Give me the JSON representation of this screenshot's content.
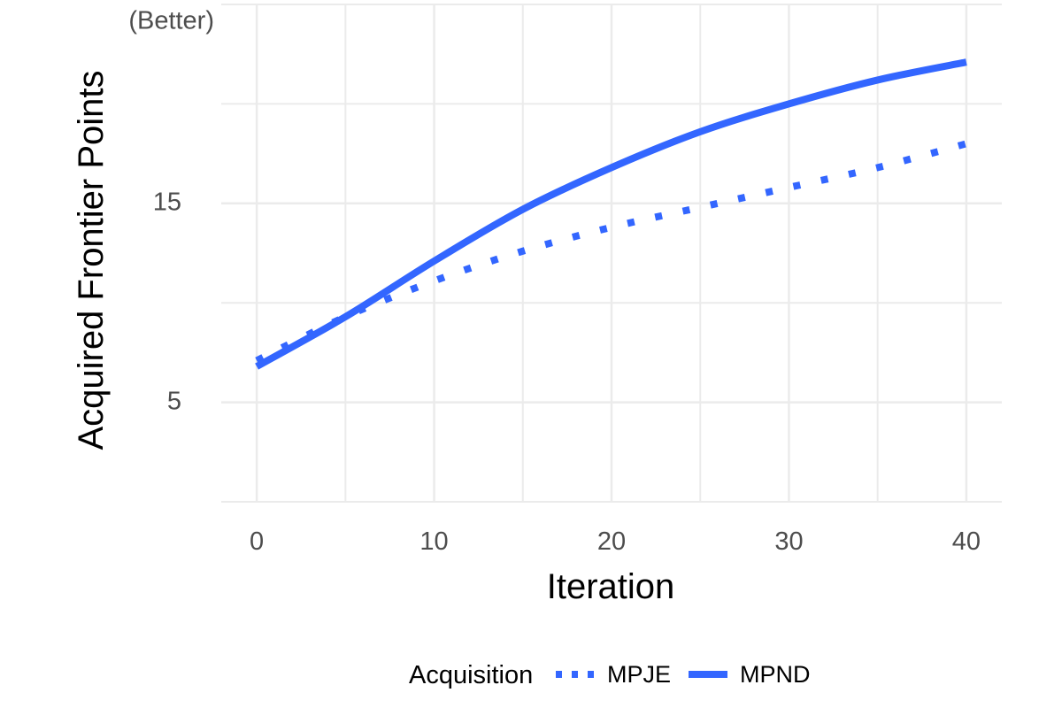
{
  "chart_data": {
    "type": "line",
    "title": "",
    "xlabel": "Iteration",
    "ylabel": "Acquired Frontier Points",
    "annotation": "(Better)",
    "xlim": [
      -2,
      42
    ],
    "ylim": [
      0,
      25
    ],
    "x_ticks": [
      "0",
      "10",
      "20",
      "30",
      "40"
    ],
    "y_ticks": [
      "5",
      "15"
    ],
    "grid": true,
    "legend_position": "bottom",
    "legend_title": "Acquisition",
    "color": "#3366ff",
    "series": [
      {
        "name": "MPJE",
        "style": "dotted",
        "x": [
          0,
          5,
          10,
          15,
          20,
          25,
          30,
          35,
          40
        ],
        "y": [
          7.1,
          9.3,
          11.1,
          12.6,
          13.8,
          14.8,
          15.8,
          16.8,
          18.0
        ]
      },
      {
        "name": "MPND",
        "style": "solid",
        "x": [
          0,
          5,
          10,
          15,
          20,
          25,
          30,
          35,
          40
        ],
        "y": [
          6.8,
          9.3,
          12.1,
          14.7,
          16.8,
          18.6,
          20.0,
          21.2,
          22.1
        ]
      }
    ]
  }
}
